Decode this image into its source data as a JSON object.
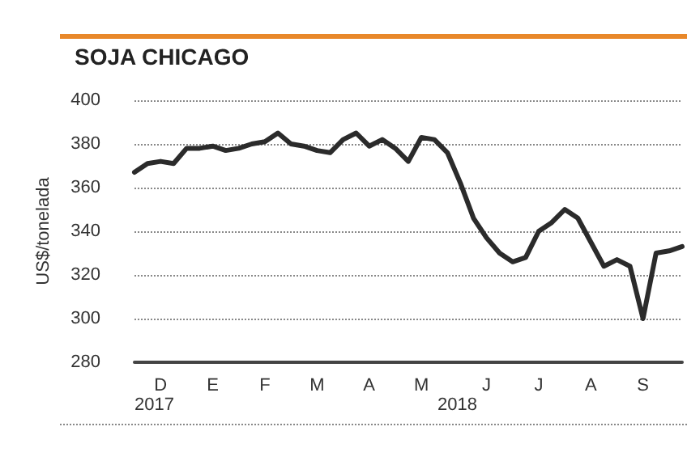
{
  "chart_data": {
    "type": "line",
    "title": "SOJA CHICAGO",
    "ylabel": "US$/tonelada",
    "categories": [
      null,
      null,
      "D",
      null,
      null,
      null,
      "E",
      null,
      null,
      null,
      "F",
      null,
      null,
      null,
      "M",
      null,
      null,
      null,
      "A",
      null,
      null,
      null,
      "M",
      null,
      null,
      null,
      null,
      "J",
      null,
      null,
      null,
      "J",
      null,
      null,
      null,
      "A",
      null,
      null,
      null,
      "S",
      null,
      null,
      null
    ],
    "series": [
      {
        "color": "#2b2b2b",
        "values": [
          367,
          371,
          372,
          371,
          378,
          378,
          379,
          377,
          378,
          380,
          381,
          385,
          380,
          379,
          377,
          376,
          382,
          385,
          379,
          382,
          378,
          372,
          383,
          382,
          376,
          362,
          346,
          337,
          330,
          326,
          328,
          340,
          344,
          350,
          346,
          335,
          324,
          327,
          324,
          300,
          330,
          331,
          333
        ]
      }
    ],
    "ylim": [
      280,
      400
    ],
    "yticks": [
      280,
      300,
      320,
      340,
      360,
      380,
      400
    ],
    "grid": "y",
    "line_style": "solid",
    "marker": "none",
    "annotations": [
      "2017",
      "2018"
    ]
  }
}
